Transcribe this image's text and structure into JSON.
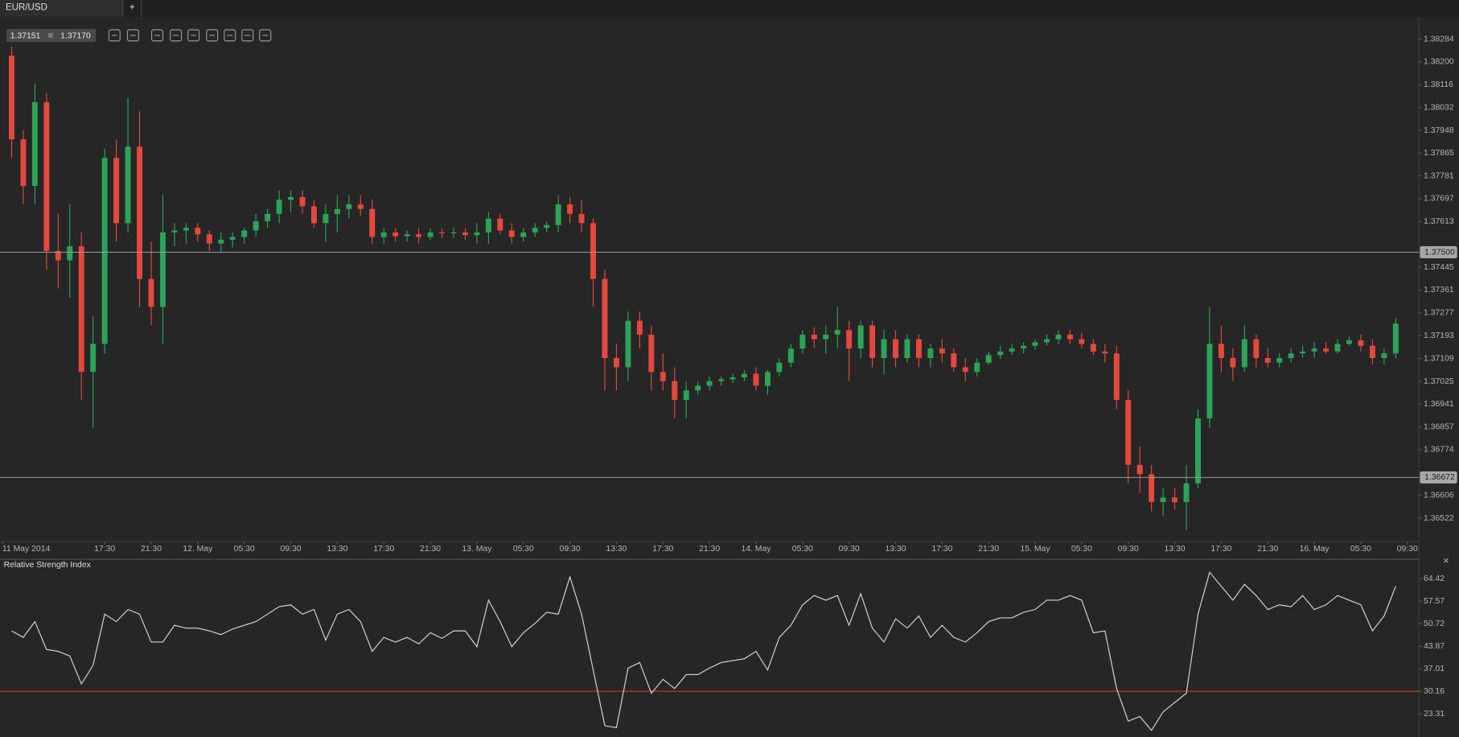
{
  "tab": {
    "title": "EUR/USD",
    "add": "+"
  },
  "quote": {
    "bid": "1.37151",
    "ask": "1.37170"
  },
  "chart_data": [
    {
      "type": "candlestick",
      "up_color": "#2ca35a",
      "down_color": "#e5483d",
      "ylim": [
        1.36436,
        1.38366
      ],
      "xlim": [
        -1,
        121
      ],
      "yticks": [
        1.38284,
        {
          "value": 1.382,
          "label": "1.38200"
        },
        1.38116,
        1.38032,
        1.37948,
        1.37865,
        1.37781,
        1.37697,
        1.37613,
        1.37445,
        1.37361,
        1.37277,
        1.37193,
        1.37109,
        1.37025,
        1.36941,
        1.36857,
        1.36774,
        1.36606,
        1.36522
      ],
      "xticks": [
        {
          "value": -0.8,
          "label": "11 May 2014"
        },
        {
          "value": 8,
          "label": "17:30"
        },
        {
          "value": 12,
          "label": "21:30"
        },
        {
          "value": 16,
          "label": "12. May"
        },
        {
          "value": 20,
          "label": "05:30"
        },
        {
          "value": 24,
          "label": "09:30"
        },
        {
          "value": 28,
          "label": "13:30"
        },
        {
          "value": 32,
          "label": "17:30"
        },
        {
          "value": 36,
          "label": "21:30"
        },
        {
          "value": 40,
          "label": "13. May"
        },
        {
          "value": 44,
          "label": "05:30"
        },
        {
          "value": 48,
          "label": "09:30"
        },
        {
          "value": 52,
          "label": "13:30"
        },
        {
          "value": 56,
          "label": "17:30"
        },
        {
          "value": 60,
          "label": "21:30"
        },
        {
          "value": 64,
          "label": "14. May"
        },
        {
          "value": 68,
          "label": "05:30"
        },
        {
          "value": 72,
          "label": "09:30"
        },
        {
          "value": 76,
          "label": "13:30"
        },
        {
          "value": 80,
          "label": "17:30"
        },
        {
          "value": 84,
          "label": "21:30"
        },
        {
          "value": 88,
          "label": "15. May"
        },
        {
          "value": 92,
          "label": "05:30"
        },
        {
          "value": 96,
          "label": "09:30"
        },
        {
          "value": 100,
          "label": "13:30"
        },
        {
          "value": 104,
          "label": "17:30"
        },
        {
          "value": 108,
          "label": "21:30"
        },
        {
          "value": 112,
          "label": "16. May"
        },
        {
          "value": 116,
          "label": "05:30"
        },
        {
          "value": 120,
          "label": "09:30"
        }
      ],
      "hlines": [
        {
          "value": 1.375,
          "label": "1.37500"
        },
        {
          "value": 1.36672,
          "label": "1.36672"
        }
      ],
      "ohlc": [
        [
          1.38223,
          1.38257,
          1.37847,
          1.37915
        ],
        [
          1.37915,
          1.37949,
          1.37676,
          1.37744
        ],
        [
          1.37744,
          1.3812,
          1.37676,
          1.38052
        ],
        [
          1.38052,
          1.38086,
          1.37436,
          1.37505
        ],
        [
          1.37505,
          1.37641,
          1.37368,
          1.3747
        ],
        [
          1.3747,
          1.37676,
          1.37334,
          1.37522
        ],
        [
          1.37522,
          1.37573,
          1.36957,
          1.3706
        ],
        [
          1.3706,
          1.37265,
          1.36855,
          1.37163
        ],
        [
          1.37163,
          1.37881,
          1.37128,
          1.37847
        ],
        [
          1.37847,
          1.37915,
          1.37539,
          1.37607
        ],
        [
          1.37607,
          1.38069,
          1.37573,
          1.37888
        ],
        [
          1.37888,
          1.38018,
          1.37299,
          1.37402
        ],
        [
          1.37402,
          1.37539,
          1.37231,
          1.37299
        ],
        [
          1.37299,
          1.3771,
          1.37163,
          1.37573
        ],
        [
          1.37573,
          1.37607,
          1.37522,
          1.3758
        ],
        [
          1.3758,
          1.37607,
          1.37532,
          1.3759
        ],
        [
          1.3759,
          1.37607,
          1.37539,
          1.37566
        ],
        [
          1.37566,
          1.3758,
          1.37505,
          1.37532
        ],
        [
          1.37532,
          1.37573,
          1.37498,
          1.37546
        ],
        [
          1.37546,
          1.37573,
          1.37518,
          1.37556
        ],
        [
          1.37556,
          1.3759,
          1.37532,
          1.3758
        ],
        [
          1.3758,
          1.37641,
          1.37556,
          1.37614
        ],
        [
          1.37614,
          1.37659,
          1.3759,
          1.37641
        ],
        [
          1.37641,
          1.37727,
          1.37607,
          1.37693
        ],
        [
          1.37693,
          1.37727,
          1.37648,
          1.37703
        ],
        [
          1.37703,
          1.37727,
          1.37641,
          1.37669
        ],
        [
          1.37669,
          1.37693,
          1.3759,
          1.37607
        ],
        [
          1.37607,
          1.37676,
          1.37539,
          1.37641
        ],
        [
          1.37641,
          1.3771,
          1.37573,
          1.37659
        ],
        [
          1.37659,
          1.3771,
          1.37624,
          1.37676
        ],
        [
          1.37676,
          1.3771,
          1.37635,
          1.37659
        ],
        [
          1.37659,
          1.37693,
          1.37532,
          1.37556
        ],
        [
          1.37556,
          1.3759,
          1.37532,
          1.37573
        ],
        [
          1.37573,
          1.3759,
          1.37539,
          1.37559
        ],
        [
          1.37559,
          1.3758,
          1.37539,
          1.37566
        ],
        [
          1.37566,
          1.3759,
          1.37532,
          1.37556
        ],
        [
          1.37556,
          1.37587,
          1.37546,
          1.37573
        ],
        [
          1.37573,
          1.37587,
          1.37552,
          1.3757
        ],
        [
          1.3757,
          1.3759,
          1.37552,
          1.37573
        ],
        [
          1.37573,
          1.37587,
          1.37546,
          1.37563
        ],
        [
          1.37563,
          1.37607,
          1.37532,
          1.37573
        ],
        [
          1.37573,
          1.37648,
          1.37532,
          1.37624
        ],
        [
          1.37624,
          1.37641,
          1.37566,
          1.3758
        ],
        [
          1.3758,
          1.37607,
          1.37532,
          1.37556
        ],
        [
          1.37556,
          1.3759,
          1.37539,
          1.37573
        ],
        [
          1.37573,
          1.37607,
          1.37556,
          1.3759
        ],
        [
          1.3759,
          1.37614,
          1.37573,
          1.376
        ],
        [
          1.376,
          1.3771,
          1.37573,
          1.37676
        ],
        [
          1.37676,
          1.37703,
          1.37607,
          1.37641
        ],
        [
          1.37641,
          1.37693,
          1.37573,
          1.37607
        ],
        [
          1.37607,
          1.37624,
          1.37299,
          1.37402
        ],
        [
          1.37402,
          1.37436,
          1.36992,
          1.37111
        ],
        [
          1.37111,
          1.37163,
          1.36992,
          1.37077
        ],
        [
          1.37077,
          1.37282,
          1.37026,
          1.37248
        ],
        [
          1.37248,
          1.37282,
          1.37146,
          1.37197
        ],
        [
          1.37197,
          1.37231,
          1.36992,
          1.3706
        ],
        [
          1.3706,
          1.37128,
          1.36992,
          1.37026
        ],
        [
          1.37026,
          1.37077,
          1.36889,
          1.36957
        ],
        [
          1.36957,
          1.37026,
          1.36889,
          1.36992
        ],
        [
          1.36992,
          1.37026,
          1.36975,
          1.37009
        ],
        [
          1.37009,
          1.37043,
          1.36992,
          1.37026
        ],
        [
          1.37026,
          1.37043,
          1.37009,
          1.37033
        ],
        [
          1.37033,
          1.37053,
          1.37019,
          1.3704
        ],
        [
          1.3704,
          1.37067,
          1.37026,
          1.37053
        ],
        [
          1.37053,
          1.37077,
          1.36992,
          1.37009
        ],
        [
          1.37009,
          1.37067,
          1.36975,
          1.3706
        ],
        [
          1.3706,
          1.37111,
          1.37043,
          1.37094
        ],
        [
          1.37094,
          1.37163,
          1.37077,
          1.37146
        ],
        [
          1.37146,
          1.37214,
          1.37128,
          1.37197
        ],
        [
          1.37197,
          1.37224,
          1.37146,
          1.3718
        ],
        [
          1.3718,
          1.37231,
          1.37128,
          1.37197
        ],
        [
          1.37197,
          1.37299,
          1.37146,
          1.37214
        ],
        [
          1.37214,
          1.37248,
          1.37026,
          1.37146
        ],
        [
          1.37146,
          1.37248,
          1.37111,
          1.37231
        ],
        [
          1.37231,
          1.37248,
          1.37077,
          1.37111
        ],
        [
          1.37111,
          1.37214,
          1.37053,
          1.3718
        ],
        [
          1.3718,
          1.37214,
          1.37077,
          1.37111
        ],
        [
          1.37111,
          1.37197,
          1.37094,
          1.3718
        ],
        [
          1.3718,
          1.37197,
          1.37077,
          1.37111
        ],
        [
          1.37111,
          1.37163,
          1.37077,
          1.37146
        ],
        [
          1.37146,
          1.3718,
          1.37094,
          1.37128
        ],
        [
          1.37128,
          1.37146,
          1.3706,
          1.37077
        ],
        [
          1.37077,
          1.37111,
          1.37026,
          1.3706
        ],
        [
          1.3706,
          1.37111,
          1.37043,
          1.37094
        ],
        [
          1.37094,
          1.37135,
          1.37087,
          1.37122
        ],
        [
          1.37122,
          1.37156,
          1.37108,
          1.37135
        ],
        [
          1.37135,
          1.37163,
          1.37122,
          1.37146
        ],
        [
          1.37146,
          1.37169,
          1.37128,
          1.37156
        ],
        [
          1.37156,
          1.3718,
          1.37142,
          1.37169
        ],
        [
          1.37169,
          1.37197,
          1.37156,
          1.3718
        ],
        [
          1.3718,
          1.37214,
          1.37163,
          1.37197
        ],
        [
          1.37197,
          1.37214,
          1.37163,
          1.3718
        ],
        [
          1.3718,
          1.37204,
          1.37146,
          1.37163
        ],
        [
          1.37163,
          1.3718,
          1.37122,
          1.37135
        ],
        [
          1.37135,
          1.37163,
          1.37094,
          1.37128
        ],
        [
          1.37128,
          1.37156,
          1.36923,
          1.36957
        ],
        [
          1.36957,
          1.36992,
          1.3665,
          1.36718
        ],
        [
          1.36718,
          1.36786,
          1.36615,
          1.36684
        ],
        [
          1.36684,
          1.36718,
          1.36547,
          1.36581
        ],
        [
          1.36581,
          1.36633,
          1.3653,
          1.36598
        ],
        [
          1.36598,
          1.36633,
          1.36554,
          1.36581
        ],
        [
          1.36581,
          1.36718,
          1.36479,
          1.3665
        ],
        [
          1.3665,
          1.36923,
          1.36633,
          1.36889
        ],
        [
          1.36889,
          1.37299,
          1.36855,
          1.37163
        ],
        [
          1.37163,
          1.37231,
          1.3706,
          1.37111
        ],
        [
          1.37111,
          1.37146,
          1.37026,
          1.37077
        ],
        [
          1.37077,
          1.37231,
          1.3706,
          1.3718
        ],
        [
          1.3718,
          1.37197,
          1.37077,
          1.37111
        ],
        [
          1.37111,
          1.37146,
          1.37077,
          1.37094
        ],
        [
          1.37094,
          1.37128,
          1.37077,
          1.37111
        ],
        [
          1.37111,
          1.37146,
          1.37094,
          1.37128
        ],
        [
          1.37128,
          1.37156,
          1.37111,
          1.37135
        ],
        [
          1.37135,
          1.37169,
          1.37111,
          1.37146
        ],
        [
          1.37146,
          1.37169,
          1.37128,
          1.37135
        ],
        [
          1.37135,
          1.3718,
          1.37128,
          1.37163
        ],
        [
          1.37163,
          1.3719,
          1.37156,
          1.37176
        ],
        [
          1.37176,
          1.37197,
          1.37135,
          1.37156
        ],
        [
          1.37156,
          1.3718,
          1.37087,
          1.37111
        ],
        [
          1.37111,
          1.37146,
          1.37087,
          1.37128
        ],
        [
          1.37128,
          1.37258,
          1.37111,
          1.37238
        ]
      ]
    },
    {
      "type": "line",
      "title": "Relative Strength Index",
      "close": "×",
      "color": "#d6d6d6",
      "ylim": [
        16.22,
        69.52
      ],
      "xlim": [
        -1,
        121
      ],
      "yticks": [
        64.42,
        57.57,
        50.72,
        43.87,
        37.01,
        30.16,
        23.31
      ],
      "level": 30.16,
      "level_color": "#c0392b",
      "values": [
        48.55,
        46.57,
        51.38,
        42.88,
        42.31,
        40.9,
        32.39,
        38.06,
        53.65,
        51.38,
        55.07,
        53.65,
        45.15,
        45.15,
        50.25,
        49.4,
        49.4,
        48.55,
        47.42,
        49.12,
        50.25,
        51.38,
        53.65,
        55.92,
        56.48,
        53.65,
        55.07,
        45.72,
        53.65,
        55.07,
        51.38,
        42.31,
        46.57,
        45.15,
        46.57,
        44.58,
        47.98,
        46.28,
        48.55,
        48.55,
        43.73,
        57.9,
        51.38,
        43.73,
        47.98,
        50.82,
        54.22,
        53.65,
        64.99,
        53.65,
        36.65,
        19.64,
        19.08,
        37.21,
        38.91,
        29.56,
        33.81,
        30.98,
        35.23,
        35.23,
        37.21,
        38.91,
        39.48,
        40.05,
        42.31,
        36.65,
        46.57,
        50.25,
        56.48,
        59.32,
        57.9,
        59.32,
        50.25,
        59.89,
        49.4,
        45.15,
        52.23,
        49.4,
        53.08,
        46.57,
        50.25,
        46.57,
        45.15,
        47.98,
        51.38,
        52.52,
        52.52,
        54.22,
        55.07,
        57.9,
        57.9,
        59.32,
        57.9,
        47.98,
        48.55,
        30.98,
        21.06,
        22.48,
        18.23,
        23.89,
        26.73,
        29.56,
        53.65,
        66.4,
        62.15,
        57.9,
        62.72,
        59.32,
        55.07,
        56.48,
        55.92,
        59.32,
        55.07,
        56.48,
        59.32,
        57.9,
        56.48,
        48.55,
        53.08,
        62.15
      ]
    }
  ]
}
